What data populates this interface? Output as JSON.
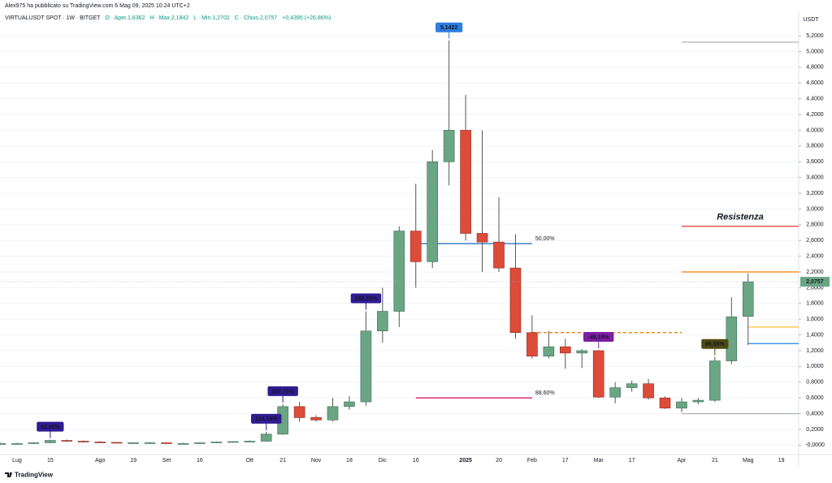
{
  "chart_data": {
    "type": "candlestick",
    "publisher_note": "Alex975 ha pubblicato su TradingView.com 6 Mag 09, 2025 10:24 UTC+2",
    "title": "VIRTUALUSDT SPOT · 1W · BITGET",
    "ohlc_legend": [
      "O · Aper.1,6362",
      "H · Max.2,1842",
      "L · Min.1,2702",
      "C · Chius.2,0757",
      "+0,4395 (+26,86%)"
    ],
    "y_axis_unit": "USDT",
    "logo": "TradingView",
    "categories": [
      null,
      "Lug",
      null,
      "15",
      null,
      null,
      "Ago",
      null,
      "19",
      null,
      "Set",
      null,
      "16",
      null,
      null,
      "Ott",
      null,
      "21",
      null,
      "Nov",
      null,
      "18",
      null,
      "Dic",
      null,
      "16",
      null,
      null,
      "2025",
      null,
      "20",
      null,
      "Feb",
      null,
      "17",
      null,
      "Mar",
      null,
      "17",
      null,
      null,
      "Apr",
      null,
      "21",
      null,
      "Mag",
      null,
      "19"
    ],
    "open": [
      0.02,
      0.02,
      0.02,
      0.03,
      0.06,
      0.05,
      0.04,
      0.035,
      0.03,
      0.03,
      0.03,
      0.02,
      0.02,
      0.03,
      0.04,
      0.045,
      0.05,
      0.14,
      0.49,
      0.35,
      0.32,
      0.49,
      0.55,
      1.45,
      1.7,
      2.72,
      2.33,
      3.6,
      4.0,
      2.69,
      2.58,
      2.25,
      1.43,
      1.13,
      1.25,
      1.17,
      1.2,
      0.61,
      0.73,
      0.78,
      0.6,
      0.47,
      0.55,
      0.57,
      1.07,
      1.6362,
      null,
      null
    ],
    "high": [
      0.03,
      0.03,
      0.035,
      0.07,
      0.07,
      0.06,
      0.05,
      0.04,
      0.04,
      0.04,
      0.035,
      0.03,
      0.035,
      0.045,
      0.05,
      0.06,
      0.17,
      0.52,
      0.55,
      0.38,
      0.6,
      0.62,
      1.7,
      2.0,
      2.78,
      3.32,
      3.75,
      5.1422,
      4.45,
      4.0,
      3.15,
      2.68,
      1.65,
      1.45,
      1.35,
      1.22,
      1.21,
      0.8,
      0.82,
      0.84,
      0.62,
      0.6,
      0.6,
      1.12,
      1.88,
      2.1842,
      null,
      null
    ],
    "low": [
      0.01,
      0.01,
      0.015,
      0.025,
      0.04,
      0.035,
      0.03,
      0.025,
      0.025,
      0.02,
      0.015,
      0.015,
      0.015,
      0.025,
      0.035,
      0.04,
      0.045,
      0.13,
      0.3,
      0.3,
      0.3,
      0.45,
      0.5,
      1.3,
      1.5,
      2.0,
      2.25,
      3.3,
      2.6,
      2.2,
      2.2,
      1.35,
      1.1,
      1.1,
      0.97,
      0.98,
      0.6,
      0.53,
      0.68,
      0.58,
      0.46,
      0.42,
      0.52,
      0.55,
      1.03,
      1.2702,
      null,
      null
    ],
    "close": [
      0.02,
      0.02,
      0.03,
      0.06,
      0.05,
      0.04,
      0.035,
      0.03,
      0.03,
      0.03,
      0.02,
      0.02,
      0.03,
      0.04,
      0.045,
      0.05,
      0.14,
      0.49,
      0.35,
      0.32,
      0.49,
      0.55,
      1.45,
      1.7,
      2.72,
      2.33,
      3.6,
      4.0,
      2.69,
      2.58,
      2.25,
      1.43,
      1.13,
      1.25,
      1.17,
      1.2,
      0.61,
      0.73,
      0.78,
      0.6,
      0.47,
      0.55,
      0.57,
      1.07,
      1.63,
      2.0757,
      null,
      null
    ],
    "up_color": "#6aa584",
    "down_color": "#dd4b39",
    "last_price_label": "2,0757",
    "ylim": [
      -0.12,
      5.5
    ],
    "yticks": [
      {
        "value": 0,
        "label": "-0,0000"
      },
      {
        "value": 0.2,
        "label": "0,2000"
      },
      {
        "value": 0.4,
        "label": "0,4000"
      },
      {
        "value": 0.6,
        "label": "0,6000"
      },
      {
        "value": 0.8,
        "label": "0,8000"
      },
      {
        "value": 1.0,
        "label": "1,0000"
      },
      {
        "value": 1.2,
        "label": "1,2000"
      },
      {
        "value": 1.4,
        "label": "1,4000"
      },
      {
        "value": 1.6,
        "label": "1,6000"
      },
      {
        "value": 1.8,
        "label": "1,8000"
      },
      {
        "value": 2.0,
        "label": "2,0000"
      },
      {
        "value": 2.2,
        "label": "2,2000"
      },
      {
        "value": 2.4,
        "label": "2,4000"
      },
      {
        "value": 2.6,
        "label": "2,6000"
      },
      {
        "value": 2.8,
        "label": "2,8000"
      },
      {
        "value": 3.0,
        "label": "3,0000"
      },
      {
        "value": 3.2,
        "label": "3,2000"
      },
      {
        "value": 3.4,
        "label": "3,4000"
      },
      {
        "value": 3.6,
        "label": "3,6000"
      },
      {
        "value": 3.8,
        "label": "3,8000"
      },
      {
        "value": 4.0,
        "label": "4,0000"
      },
      {
        "value": 4.2,
        "label": "4,2000"
      },
      {
        "value": 4.4,
        "label": "4,4000"
      },
      {
        "value": 4.6,
        "label": "4,6000"
      },
      {
        "value": 4.8,
        "label": "4,8000"
      },
      {
        "value": 5.0,
        "label": "5,0000"
      },
      {
        "value": 5.2,
        "label": "5,2000"
      }
    ],
    "grid": true,
    "hlines": [
      {
        "value": 5.12,
        "color": "#b2b5be",
        "from": 41,
        "to": null
      },
      {
        "value": 2.78,
        "color": "#e53935",
        "from": 41,
        "to": null,
        "label": "Resistenza"
      },
      {
        "value": 2.2,
        "color": "#f57c00",
        "from": 41,
        "to": null
      },
      {
        "value": 1.5,
        "color": "#fbc02d",
        "from": 45,
        "to": null
      },
      {
        "value": 1.29,
        "color": "#1e88e5",
        "from": 45,
        "to": null
      },
      {
        "value": 0.4,
        "color": "#b2b5be",
        "from": 41,
        "to": null
      },
      {
        "value": 2.56,
        "color": "#1565c0",
        "from": 25,
        "to": 32,
        "label": "50,00%"
      },
      {
        "value": 0.6,
        "color": "#d81b60",
        "from": 25,
        "to": 32,
        "label": "88,60%"
      },
      {
        "value": 1.43,
        "color": "#f57c00",
        "from": 32,
        "to": 41,
        "dashed": true
      }
    ],
    "annotations": [
      {
        "text": "92,08%",
        "at": 3,
        "color": "#311b92"
      },
      {
        "text": "124,18%",
        "at": 16,
        "color": "#311b92"
      },
      {
        "text": "257,75%",
        "at": 17,
        "color": "#311b92"
      },
      {
        "text": "165,35%",
        "at": 22,
        "color": "#311b92"
      },
      {
        "text": "5,1422",
        "at": 27,
        "color": "#2f7de1"
      },
      {
        "text": "-49,19%",
        "at": 36,
        "color": "#7b1fa2"
      },
      {
        "text": "86,55%",
        "at": 43,
        "color": "#4e4a12"
      }
    ]
  }
}
